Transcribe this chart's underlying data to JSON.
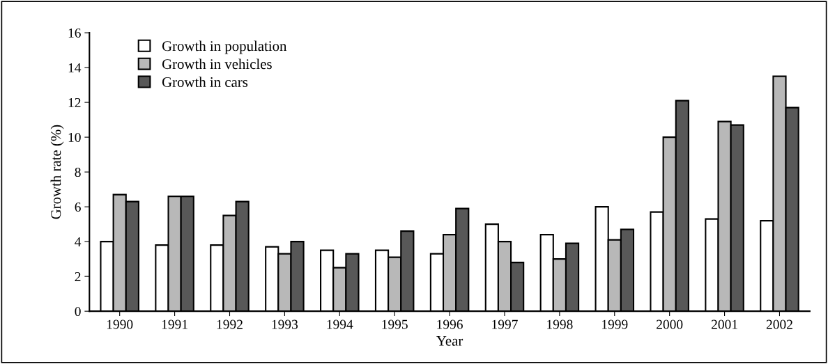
{
  "chart_data": {
    "type": "bar",
    "xlabel": "Year",
    "ylabel": "Growth rate (%)",
    "categories": [
      "1990",
      "1991",
      "1992",
      "1993",
      "1994",
      "1995",
      "1996",
      "1997",
      "1998",
      "1999",
      "2000",
      "2001",
      "2002"
    ],
    "series": [
      {
        "name": "Growth in population",
        "color": "#ffffff",
        "values": [
          4.0,
          3.8,
          3.8,
          3.7,
          3.5,
          3.5,
          3.3,
          5.0,
          4.4,
          6.0,
          5.7,
          5.3,
          5.2
        ]
      },
      {
        "name": "Growth in vehicles",
        "color": "#b8b8b8",
        "values": [
          6.7,
          6.6,
          5.5,
          3.3,
          2.5,
          3.1,
          4.4,
          4.0,
          3.0,
          4.1,
          10.0,
          10.9,
          13.5
        ]
      },
      {
        "name": "Growth in cars",
        "color": "#585858",
        "values": [
          6.3,
          6.6,
          6.3,
          4.0,
          3.3,
          4.6,
          5.9,
          2.8,
          3.9,
          4.7,
          12.1,
          10.7,
          11.7
        ]
      }
    ],
    "ylim": [
      0,
      16
    ],
    "yticks": [
      0,
      2,
      4,
      6,
      8,
      10,
      12,
      14,
      16
    ],
    "grid": false,
    "legend": "top left"
  }
}
